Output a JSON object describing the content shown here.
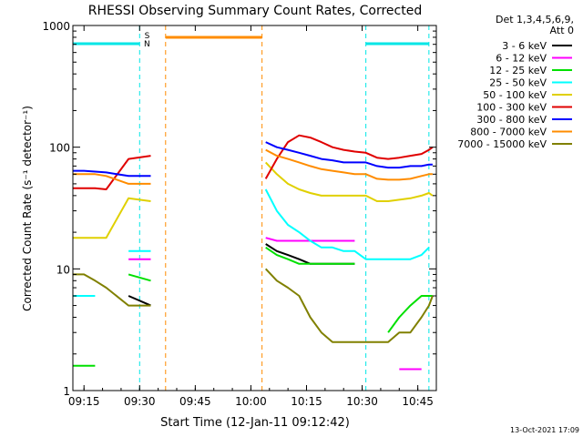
{
  "chart_data": {
    "type": "line",
    "title": "RHESSI Observing Summary Count Rates, Corrected",
    "xlabel": "Start Time (12-Jan-11 09:12:42)",
    "ylabel": "Corrected Count Rate (s⁻¹ detector⁻¹)",
    "y_scale": "log",
    "ylim": [
      1,
      1000
    ],
    "xlim": [
      "09:12",
      "10:50"
    ],
    "x_ticks": [
      "09:15",
      "09:30",
      "09:45",
      "10:00",
      "10:15",
      "10:30",
      "10:45"
    ],
    "y_ticks": [
      "1",
      "10",
      "100",
      "1000"
    ],
    "legend_header": [
      "Det 1,3,4,5,6,9,",
      "Att 0"
    ],
    "legend_placement": "right",
    "footer_date": "13-Oct-2021 17:09",
    "flag_labels": [
      "S",
      "N"
    ],
    "flags": [
      {
        "name": "SAA",
        "color": "#00e6e6",
        "intervals": [
          [
            "09:12",
            "09:30"
          ],
          [
            "10:31",
            "10:48"
          ]
        ]
      },
      {
        "name": "Night",
        "color": "#ff8c00",
        "intervals": [
          [
            "09:37",
            "10:03"
          ]
        ]
      }
    ],
    "series": [
      {
        "name": "3 - 6 keV",
        "color": "#000000",
        "values": [
          null,
          null,
          null,
          null,
          6,
          5,
          null,
          null,
          null,
          null,
          null,
          null,
          null,
          null,
          null,
          null,
          16,
          14,
          13,
          12,
          11,
          11,
          11,
          11,
          11,
          null,
          null,
          null,
          null,
          null,
          null,
          null,
          null
        ]
      },
      {
        "name": "6 - 12 keV",
        "color": "#ff00ff",
        "values": [
          null,
          null,
          null,
          null,
          12,
          12,
          null,
          null,
          null,
          null,
          null,
          null,
          null,
          null,
          null,
          null,
          18,
          17,
          17,
          17,
          17,
          17,
          17,
          17,
          17,
          null,
          null,
          null,
          1.5,
          1.5,
          1.5,
          null,
          null
        ]
      },
      {
        "name": "12 - 25 keV",
        "color": "#00e000",
        "values": [
          1.6,
          1.6,
          1.6,
          null,
          9,
          8,
          null,
          null,
          null,
          null,
          null,
          null,
          null,
          null,
          null,
          null,
          15,
          13,
          12,
          11,
          11,
          11,
          11,
          11,
          11,
          null,
          null,
          3,
          4,
          5,
          6,
          6,
          6
        ]
      },
      {
        "name": "25 - 50 keV",
        "color": "#00ffff",
        "values": [
          6,
          6,
          6,
          null,
          14,
          14,
          null,
          null,
          null,
          null,
          null,
          null,
          null,
          null,
          null,
          null,
          45,
          30,
          23,
          20,
          17,
          15,
          15,
          14,
          14,
          12,
          12,
          12,
          12,
          12,
          13,
          15,
          null
        ]
      },
      {
        "name": "50 - 100 keV",
        "color": "#e0d000",
        "values": [
          18,
          18,
          18,
          18,
          38,
          36,
          null,
          null,
          null,
          null,
          null,
          null,
          null,
          null,
          null,
          null,
          75,
          60,
          50,
          45,
          42,
          40,
          40,
          40,
          40,
          40,
          36,
          36,
          37,
          38,
          40,
          42,
          40
        ]
      },
      {
        "name": "100 - 300 keV",
        "color": "#e00000",
        "values": [
          46,
          46,
          46,
          45,
          80,
          85,
          null,
          null,
          null,
          null,
          null,
          null,
          null,
          null,
          null,
          null,
          55,
          80,
          110,
          125,
          120,
          110,
          100,
          95,
          92,
          90,
          82,
          80,
          82,
          85,
          88,
          95,
          100
        ]
      },
      {
        "name": "300 - 800 keV",
        "color": "#0000ff",
        "values": [
          64,
          64,
          63,
          62,
          58,
          58,
          null,
          null,
          null,
          null,
          null,
          null,
          null,
          null,
          null,
          null,
          110,
          100,
          95,
          90,
          85,
          80,
          78,
          75,
          75,
          75,
          70,
          68,
          68,
          70,
          70,
          72,
          72
        ]
      },
      {
        "name": "800 - 7000 keV",
        "color": "#ff8c00",
        "values": [
          60,
          60,
          60,
          58,
          50,
          50,
          null,
          null,
          null,
          null,
          null,
          null,
          null,
          null,
          null,
          null,
          95,
          85,
          80,
          75,
          70,
          66,
          64,
          62,
          60,
          60,
          55,
          54,
          54,
          55,
          58,
          60,
          60
        ]
      },
      {
        "name": "7000 - 15000 keV",
        "color": "#808000",
        "values": [
          9,
          9,
          8,
          7,
          5,
          5,
          null,
          null,
          null,
          null,
          null,
          null,
          null,
          null,
          null,
          null,
          10,
          8,
          7,
          6,
          4,
          3,
          2.5,
          2.5,
          2.5,
          2.5,
          2.5,
          2.5,
          3,
          3,
          4,
          5,
          6
        ]
      }
    ],
    "x": [
      "09:12",
      "09:15",
      "09:18",
      "09:21",
      "09:27",
      "09:33",
      "09:39",
      "09:42",
      "09:45",
      "09:48",
      "09:51",
      "09:54",
      "09:57",
      "10:00",
      "10:01",
      "10:02",
      "10:04",
      "10:07",
      "10:10",
      "10:13",
      "10:16",
      "10:19",
      "10:22",
      "10:25",
      "10:28",
      "10:31",
      "10:34",
      "10:37",
      "10:40",
      "10:43",
      "10:46",
      "10:48",
      "10:49"
    ]
  }
}
